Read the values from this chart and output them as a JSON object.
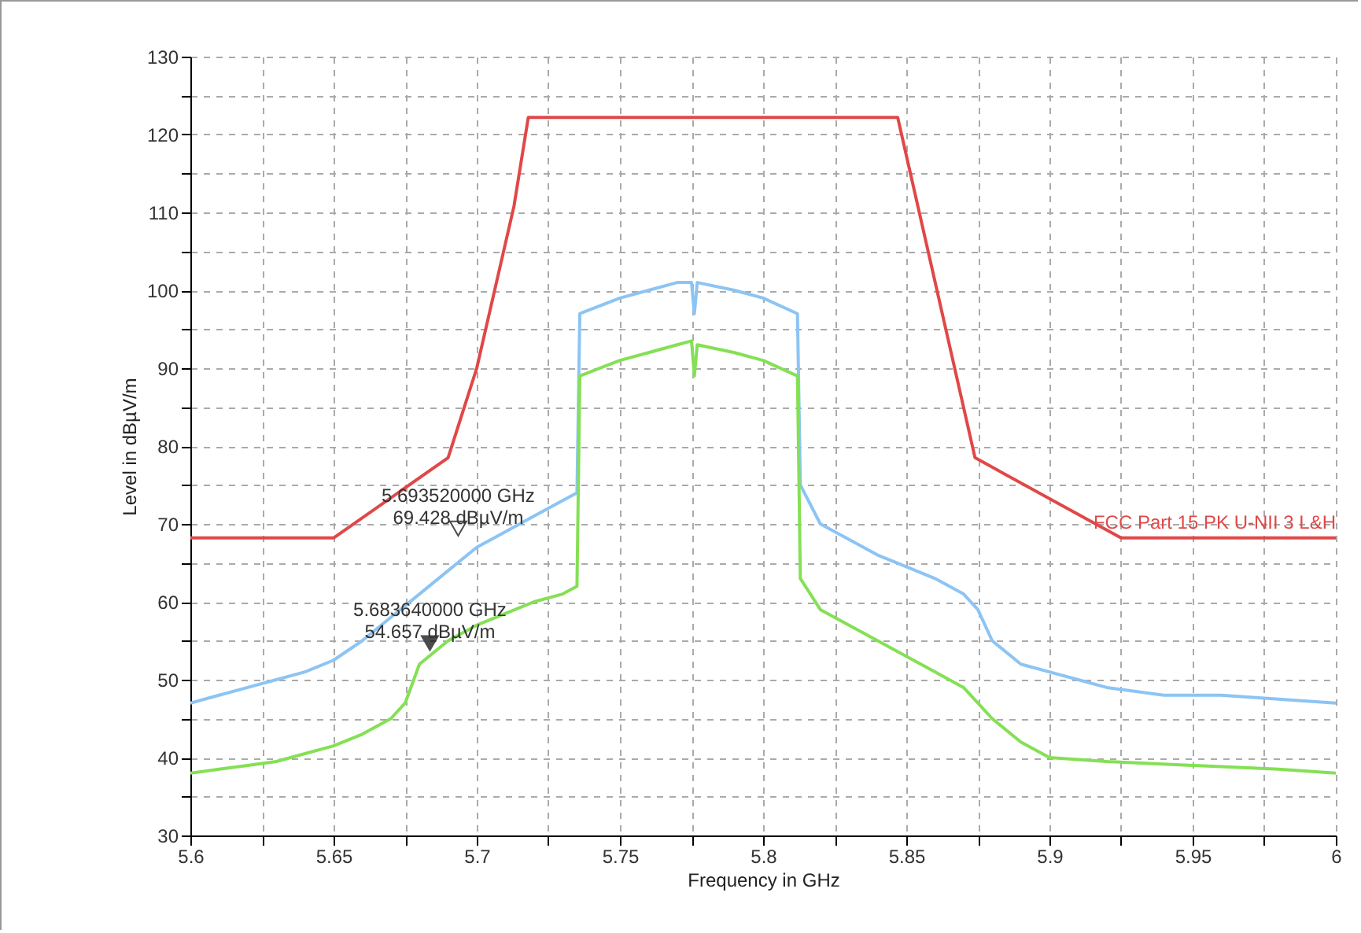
{
  "chart_data": {
    "type": "line",
    "xlabel": "Frequency in GHz",
    "ylabel": "Level in dBµV/m",
    "xlim": [
      5.6,
      6
    ],
    "ylim": [
      30,
      130
    ],
    "xticks": [
      5.6,
      {
        "value": 5.625,
        "label": null
      },
      5.65,
      {
        "value": 5.675,
        "label": null
      },
      5.7,
      {
        "value": 5.725,
        "label": null
      },
      5.75,
      {
        "value": 5.775,
        "label": null
      },
      5.8,
      {
        "value": 5.825,
        "label": null
      },
      5.85,
      {
        "value": 5.875,
        "label": null
      },
      5.9,
      {
        "value": 5.925,
        "label": null
      },
      5.95,
      {
        "value": 5.975,
        "label": null
      },
      6
    ],
    "yticks": [
      30,
      {
        "value": 35,
        "label": null
      },
      40,
      {
        "value": 45,
        "label": null
      },
      50,
      {
        "value": 55,
        "label": null
      },
      60,
      {
        "value": 65,
        "label": null
      },
      70,
      {
        "value": 75,
        "label": null
      },
      80,
      {
        "value": 85,
        "label": null
      },
      90,
      {
        "value": 95,
        "label": null
      },
      100,
      {
        "value": 105,
        "label": null
      },
      110,
      {
        "value": 115,
        "label": null
      },
      120,
      {
        "value": 125,
        "label": null
      },
      130
    ],
    "grid": true,
    "legend": false,
    "marker": "none",
    "line_style": "solid",
    "series": [
      {
        "color": "#8cc4f4",
        "x": [
          5.6,
          5.61,
          5.62,
          5.63,
          5.64,
          5.65,
          5.66,
          5.67,
          5.68,
          5.69,
          5.7,
          5.71,
          5.72,
          5.73,
          5.735,
          5.736,
          5.75,
          5.76,
          5.77,
          5.775,
          5.776,
          5.777,
          5.79,
          5.8,
          5.812,
          5.813,
          5.82,
          5.83,
          5.84,
          5.85,
          5.86,
          5.87,
          5.875,
          5.88,
          5.89,
          5.9,
          5.91,
          5.92,
          5.94,
          5.96,
          5.98,
          6.0
        ],
        "values": [
          47,
          48,
          49,
          50,
          51,
          52.5,
          55,
          58,
          61,
          64,
          67,
          69,
          71,
          73,
          74,
          97,
          99,
          100,
          101,
          101,
          97,
          101,
          100,
          99,
          97,
          75,
          70,
          68,
          66,
          64.5,
          63,
          61,
          59,
          55,
          52,
          51,
          50,
          49,
          48,
          48,
          47.5,
          47
        ]
      },
      {
        "color": "#84e054",
        "x": [
          5.6,
          5.61,
          5.62,
          5.63,
          5.64,
          5.65,
          5.66,
          5.67,
          5.675,
          5.68,
          5.69,
          5.7,
          5.71,
          5.72,
          5.73,
          5.735,
          5.736,
          5.75,
          5.76,
          5.77,
          5.775,
          5.776,
          5.777,
          5.79,
          5.8,
          5.812,
          5.813,
          5.82,
          5.83,
          5.84,
          5.85,
          5.86,
          5.87,
          5.875,
          5.88,
          5.89,
          5.9,
          5.92,
          5.95,
          5.98,
          6.0
        ],
        "values": [
          38,
          38.5,
          39,
          39.5,
          40.5,
          41.5,
          43,
          45,
          47,
          52,
          55,
          57,
          58.5,
          60,
          61,
          62,
          89,
          91,
          92,
          93,
          93.5,
          89,
          93,
          92,
          91,
          89,
          63,
          59,
          57,
          55,
          53,
          51,
          49,
          47,
          45,
          42,
          40,
          39.5,
          39,
          38.5,
          38
        ]
      },
      {
        "name": "FCC Part 15 PK U-NII 3 L&H",
        "color": "#e04848",
        "x": [
          5.6,
          5.65,
          5.69,
          5.7,
          5.713,
          5.718,
          5.847,
          5.874,
          5.925,
          6.0
        ],
        "values": [
          68.2,
          68.2,
          78.5,
          90,
          110.8,
          122.2,
          122.2,
          78.5,
          68.2,
          68.2
        ]
      },
      {
        "type": "scatter",
        "marker": "triangle",
        "color": "#ffffff",
        "x": [
          5.69352
        ],
        "values": [
          69.4
        ]
      },
      {
        "type": "scatter",
        "marker": "triangle",
        "color": "#000000",
        "x": [
          5.68364
        ],
        "values": [
          54.7
        ]
      }
    ],
    "annotations": [
      "5.693520000 GHz\n69.428 dBµV/m",
      "5.683640000 GHz\n54.657 dBµV/m"
    ]
  }
}
